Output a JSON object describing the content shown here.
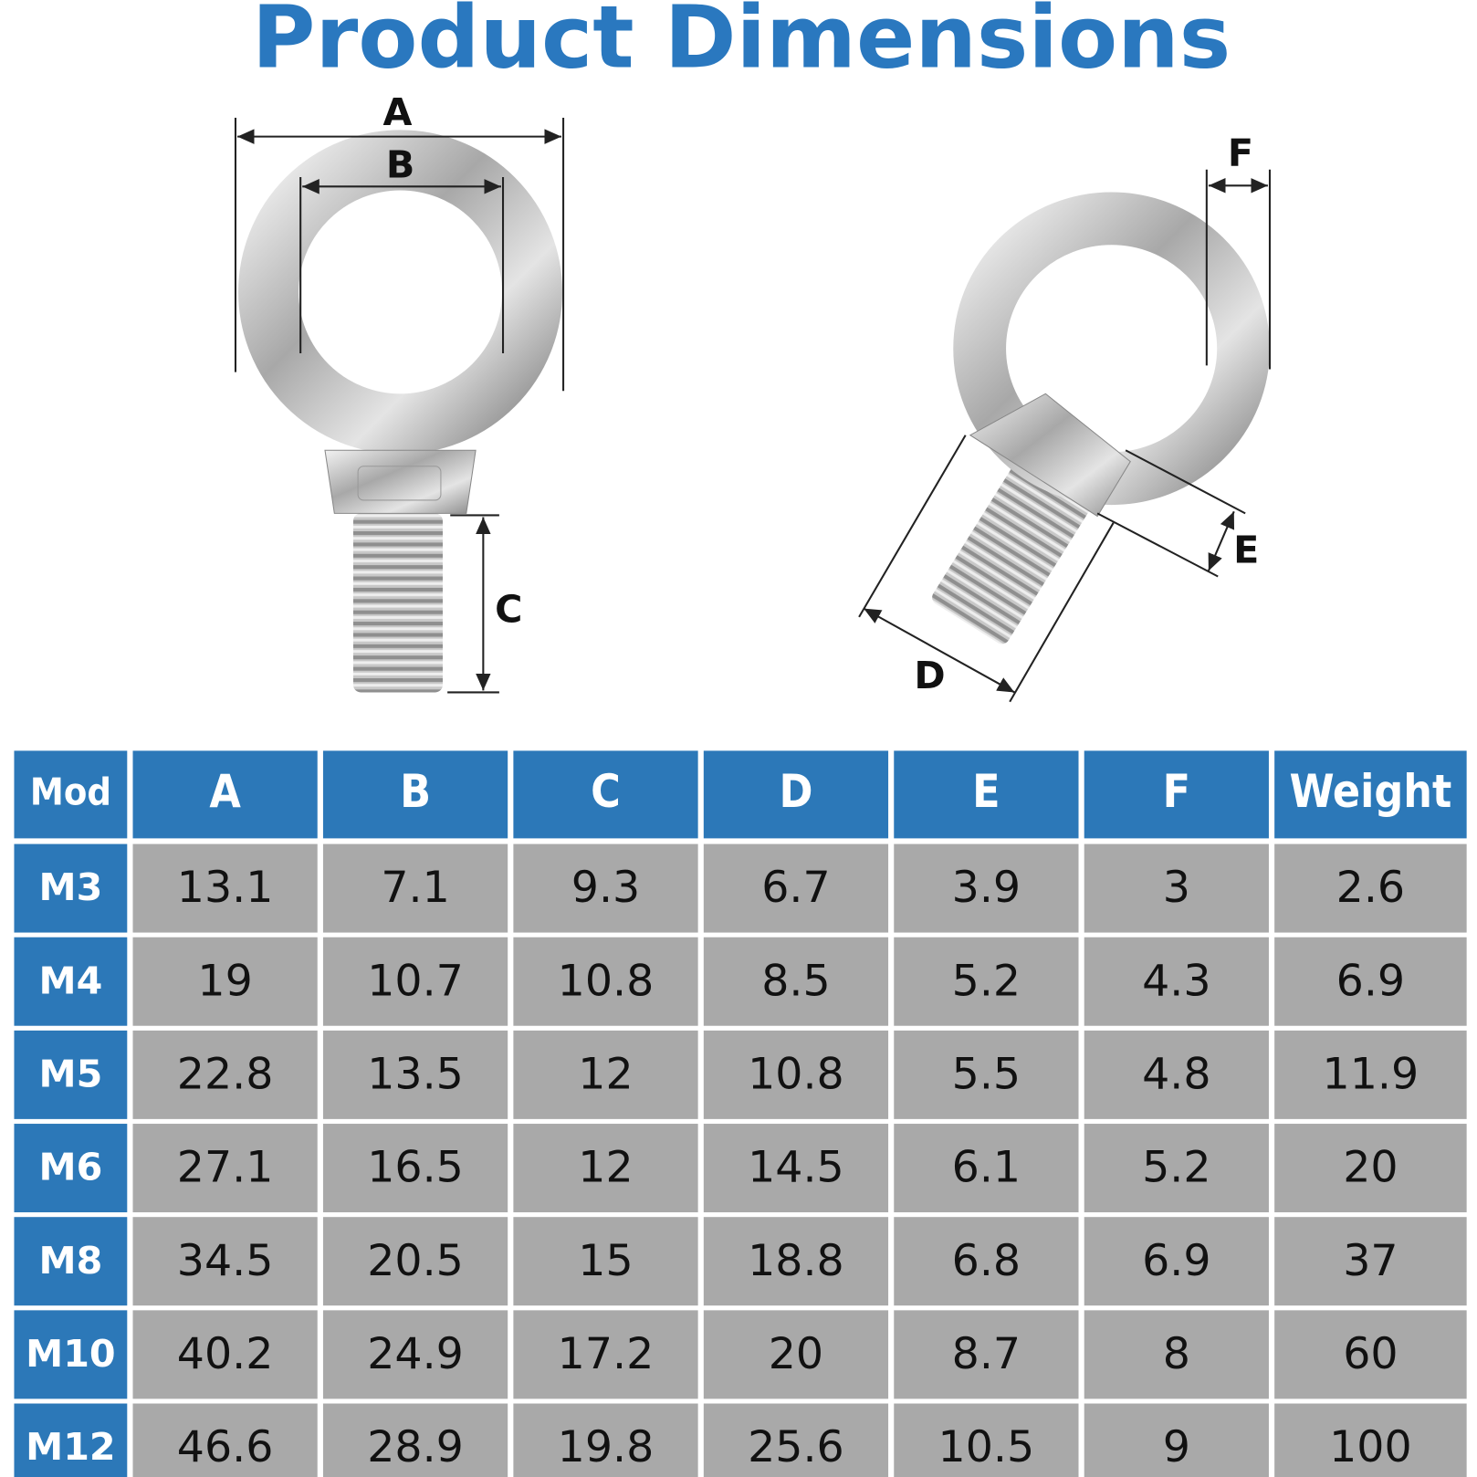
{
  "header": {
    "title": "Product Dimensions"
  },
  "diagram": {
    "front_labels": [
      "A",
      "B",
      "C"
    ],
    "side_labels": [
      "D",
      "E",
      "F"
    ]
  },
  "table": {
    "columns": [
      "Mod",
      "A",
      "B",
      "C",
      "D",
      "E",
      "F",
      "Weight"
    ],
    "rows": [
      [
        "M3",
        "13.1",
        "7.1",
        "9.3",
        "6.7",
        "3.9",
        "3",
        "2.6"
      ],
      [
        "M4",
        "19",
        "10.7",
        "10.8",
        "8.5",
        "5.2",
        "4.3",
        "6.9"
      ],
      [
        "M5",
        "22.8",
        "13.5",
        "12",
        "10.8",
        "5.5",
        "4.8",
        "11.9"
      ],
      [
        "M6",
        "27.1",
        "16.5",
        "12",
        "14.5",
        "6.1",
        "5.2",
        "20"
      ],
      [
        "M8",
        "34.5",
        "20.5",
        "15",
        "18.8",
        "6.8",
        "6.9",
        "37"
      ],
      [
        "M10",
        "40.2",
        "24.9",
        "17.2",
        "20",
        "8.7",
        "8",
        "60"
      ],
      [
        "M12",
        "46.6",
        "28.9",
        "19.8",
        "25.6",
        "10.5",
        "9",
        "100"
      ]
    ]
  }
}
